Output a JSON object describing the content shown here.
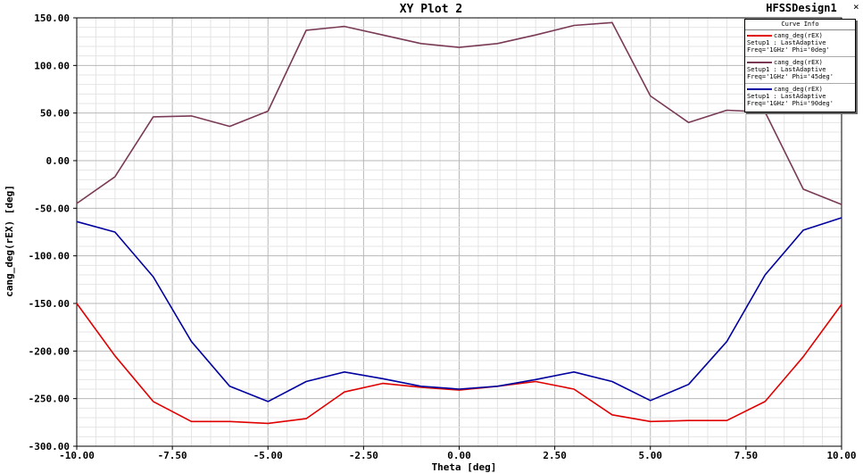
{
  "header": {
    "title": "XY Plot 2",
    "design_name": "HFSSDesign1"
  },
  "legend": {
    "heading": "Curve Info",
    "entries": [
      {
        "name": "cang_deg(rEX)",
        "setup": "Setup1 : LastAdaptive",
        "params": "Freq='1GHz' Phi='0deg'",
        "color": "#e00000"
      },
      {
        "name": "cang_deg(rEX)",
        "setup": "Setup1 : LastAdaptive",
        "params": "Freq='1GHz' Phi='45deg'",
        "color": "#7a3a55"
      },
      {
        "name": "cang_deg(rEX)",
        "setup": "Setup1 : LastAdaptive",
        "params": "Freq='1GHz' Phi='90deg'",
        "color": "#0000a0"
      }
    ]
  },
  "chart_data": {
    "type": "line",
    "title": "XY Plot 2",
    "xlabel": "Theta [deg]",
    "ylabel": "cang_deg(rEX) [deg]",
    "xlim": [
      -10,
      10
    ],
    "ylim": [
      -300,
      150
    ],
    "x_ticks": [
      "-10.00",
      "-7.50",
      "-5.00",
      "-2.50",
      "0.00",
      "2.50",
      "5.00",
      "7.50",
      "10.00"
    ],
    "y_ticks": [
      "150.00",
      "100.00",
      "50.00",
      "0.00",
      "-50.00",
      "-100.00",
      "-150.00",
      "-200.00",
      "-250.00",
      "-300.00"
    ],
    "grid": true,
    "legend_position": "top-right",
    "x": [
      -10,
      -9,
      -8,
      -7,
      -6,
      -5,
      -4,
      -3,
      -2,
      -1,
      0,
      1,
      2,
      3,
      4,
      5,
      6,
      7,
      8,
      9,
      10
    ],
    "series": [
      {
        "name": "cang_deg(rEX) Phi='0deg'",
        "color": "#e00000",
        "values": [
          -150,
          -205,
          -253,
          -274,
          -274,
          -276,
          -271,
          -243,
          -234,
          -238,
          -241,
          -237,
          -232,
          -240,
          -267,
          -274,
          -273,
          -273,
          -253,
          -206,
          -151
        ]
      },
      {
        "name": "cang_deg(rEX) Phi='45deg'",
        "color": "#7a3a55",
        "values": [
          -45,
          -17,
          46,
          47,
          36,
          52,
          137,
          141,
          132,
          123,
          119,
          123,
          132,
          142,
          145,
          68,
          40,
          53,
          51,
          -30,
          -46
        ]
      },
      {
        "name": "cang_deg(rEX) Phi='90deg'",
        "color": "#0000a0",
        "values": [
          -64,
          -75,
          -122,
          -190,
          -237,
          -253,
          -232,
          -222,
          -229,
          -237,
          -240,
          -237,
          -230,
          -222,
          -232,
          -252,
          -235,
          -190,
          -120,
          -73,
          -60
        ]
      }
    ]
  }
}
